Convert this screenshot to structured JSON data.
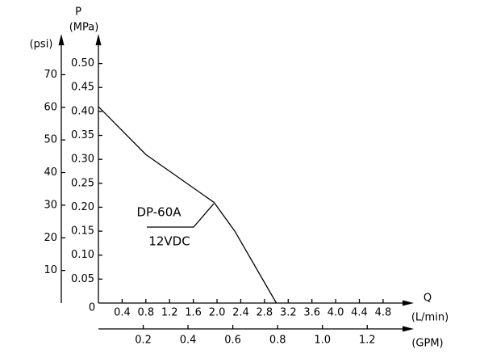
{
  "chart_data": {
    "type": "line",
    "y_label": "P",
    "y_unit": "(MPa)",
    "y2_unit": "(psi)",
    "x_label": "Q",
    "x_unit": "(L/min)",
    "x2_unit": "(GPM)",
    "origin_label": "0",
    "x": [
      0,
      0.8,
      1.95,
      2.3,
      3.0
    ],
    "series": [
      {
        "name": "DP-60A",
        "color": "#000000",
        "values": [
          0.41,
          0.31,
          0.21,
          0.15,
          0
        ]
      }
    ],
    "annotation": "12VDC",
    "xlim": [
      0,
      5.25
    ],
    "xticks": [
      0.4,
      0.8,
      1.2,
      1.6,
      {
        "value": 2.0,
        "label": "2.0"
      },
      2.4,
      2.8,
      3.2,
      3.6,
      {
        "value": 4.0,
        "label": "4.0"
      },
      4.4,
      4.8
    ],
    "x2lim": [
      0,
      1.39
    ],
    "x2ticks": [
      0.2,
      0.4,
      0.6,
      0.8,
      {
        "value": 1.0,
        "label": "1.0"
      },
      1.2
    ],
    "ylim": [
      0,
      0.555
    ],
    "yticks": [
      0.05,
      {
        "value": 0.1,
        "label": "0.10"
      },
      0.15,
      {
        "value": 0.2,
        "label": "0.20"
      },
      0.25,
      {
        "value": 0.3,
        "label": "0.30"
      },
      0.35,
      {
        "value": 0.4,
        "label": "0.40"
      },
      0.45,
      {
        "value": 0.5,
        "label": "0.50"
      }
    ],
    "y2lim": [
      0,
      81.5
    ],
    "y2ticks": [
      10,
      20,
      30,
      40,
      50,
      60,
      70
    ]
  }
}
